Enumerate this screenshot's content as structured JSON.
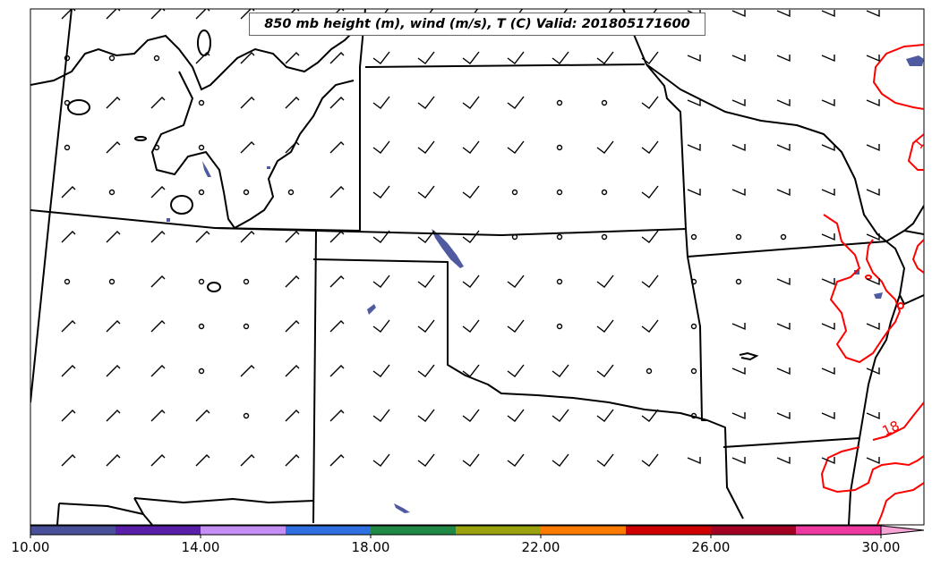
{
  "title": "850 mb height (m), wind (m/s), T (C) Valid: 201805171600",
  "contour_labels": [
    {
      "text": "18",
      "color": "#ff0000"
    },
    {
      "text": "1",
      "color": "#ff0000"
    }
  ],
  "colorbar": {
    "tick_labels": [
      "10.00",
      "14.00",
      "18.00",
      "22.00",
      "26.00",
      "30.00"
    ],
    "colors": [
      "#4a4f9a",
      "#5a1fa8",
      "#c48ef5",
      "#2f6fdf",
      "#1f8845",
      "#9aa00e",
      "#ff7a00",
      "#d10000",
      "#a30024",
      "#ee3aa0"
    ],
    "extend_color": "#f7a3d6",
    "range": [
      10,
      30
    ]
  },
  "colors": {
    "temperature_contour": "#ff0000",
    "state_borders": "#000000",
    "shaded_patches": "#505aa0"
  }
}
